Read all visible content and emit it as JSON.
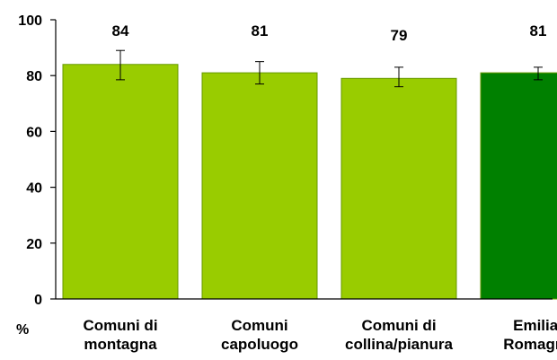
{
  "chart_data": {
    "type": "bar",
    "ylabel": "%",
    "ylim": [
      0,
      100
    ],
    "yticks": [
      0,
      20,
      40,
      60,
      80,
      100
    ],
    "grid": false,
    "legend": "none",
    "categories": [
      [
        "Comuni di",
        "montagna"
      ],
      [
        "Comuni",
        "capoluogo"
      ],
      [
        "Comuni di",
        "collina/pianura"
      ],
      [
        "Emilia-",
        "Romagna"
      ]
    ],
    "values": [
      84,
      81,
      79,
      81
    ],
    "value_labels": [
      "84",
      "81",
      "79",
      "81"
    ],
    "error_bars": [
      {
        "low": 78.5,
        "high": 89
      },
      {
        "low": 77,
        "high": 85
      },
      {
        "low": 76,
        "high": 83
      },
      {
        "low": 78.5,
        "high": 83
      }
    ],
    "colors": [
      "#99cc00",
      "#99cc00",
      "#99cc00",
      "#008000"
    ],
    "bar_border_color": "#669900",
    "axis_color": "#000000"
  }
}
